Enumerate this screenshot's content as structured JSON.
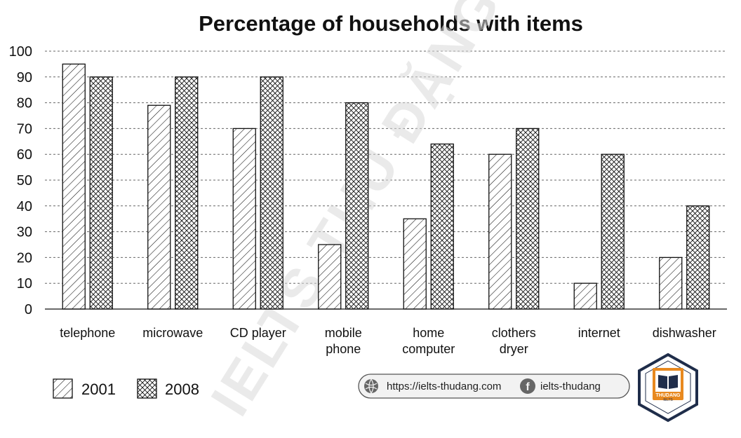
{
  "chart_data": {
    "type": "bar",
    "title": "Percentage of households with items",
    "categories": [
      "telephone",
      "microwave",
      "CD player",
      "mobile phone",
      "home computer",
      "clothers dryer",
      "internet",
      "dishwasher"
    ],
    "category_lines": [
      [
        "telephone"
      ],
      [
        "microwave"
      ],
      [
        "CD player"
      ],
      [
        "mobile",
        "phone"
      ],
      [
        "home",
        "computer"
      ],
      [
        "clothers",
        "dryer"
      ],
      [
        "internet"
      ],
      [
        "dishwasher"
      ]
    ],
    "series": [
      {
        "name": "2001",
        "pattern": "diagonal-hatch",
        "values": [
          95,
          79,
          70,
          25,
          35,
          60,
          10,
          20
        ]
      },
      {
        "name": "2008",
        "pattern": "cross-hatch",
        "values": [
          90,
          90,
          90,
          80,
          64,
          70,
          60,
          40
        ]
      }
    ],
    "ylim": [
      0,
      100
    ],
    "yticks": [
      0,
      10,
      20,
      30,
      40,
      50,
      60,
      70,
      80,
      90,
      100
    ],
    "grid": "horizontal-dashed",
    "legend_position": "bottom-left"
  },
  "watermark": "IELTS THU ĐẶNG",
  "footer": {
    "website": "https://ielts-thudang.com",
    "facebook": "ielts-thudang",
    "logo_brand": "THUDANG",
    "logo_sub": "IELTS"
  },
  "colors": {
    "ink": "#111111",
    "grid": "#666666",
    "logo_orange": "#e8891f",
    "logo_navy": "#1f2d4a"
  }
}
